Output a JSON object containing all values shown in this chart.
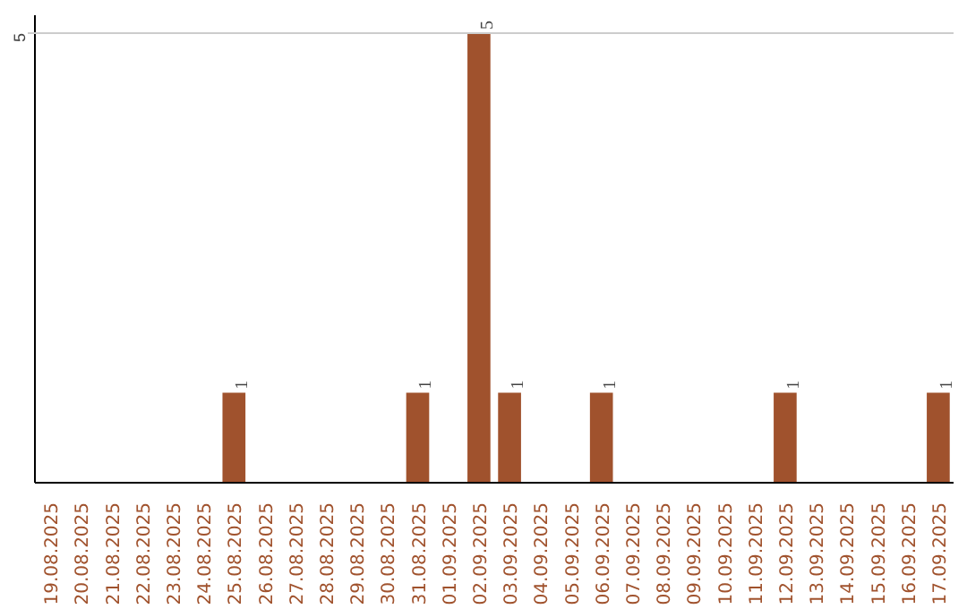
{
  "chart_data": {
    "type": "bar",
    "categories": [
      "19.08.2025",
      "20.08.2025",
      "21.08.2025",
      "22.08.2025",
      "23.08.2025",
      "24.08.2025",
      "25.08.2025",
      "26.08.2025",
      "27.08.2025",
      "28.08.2025",
      "29.08.2025",
      "30.08.2025",
      "31.08.2025",
      "01.09.2025",
      "02.09.2025",
      "03.09.2025",
      "04.09.2025",
      "05.09.2025",
      "06.09.2025",
      "07.09.2025",
      "08.09.2025",
      "09.09.2025",
      "10.09.2025",
      "11.09.2025",
      "12.09.2025",
      "13.09.2025",
      "14.09.2025",
      "15.09.2025",
      "16.09.2025",
      "17.09.2025"
    ],
    "values": [
      0,
      0,
      0,
      0,
      0,
      0,
      1,
      0,
      0,
      0,
      0,
      0,
      1,
      0,
      5,
      1,
      0,
      0,
      1,
      0,
      0,
      0,
      0,
      0,
      1,
      0,
      0,
      0,
      0,
      1
    ],
    "value_labels": [
      null,
      null,
      null,
      null,
      null,
      null,
      "1",
      null,
      null,
      null,
      null,
      null,
      "1",
      null,
      "5",
      "1",
      null,
      null,
      "1",
      null,
      null,
      null,
      null,
      null,
      "1",
      null,
      null,
      null,
      null,
      "1"
    ],
    "color": "#a0522d",
    "ylim": [
      0,
      5.2
    ],
    "yticks": [
      5
    ],
    "grid": "y"
  }
}
